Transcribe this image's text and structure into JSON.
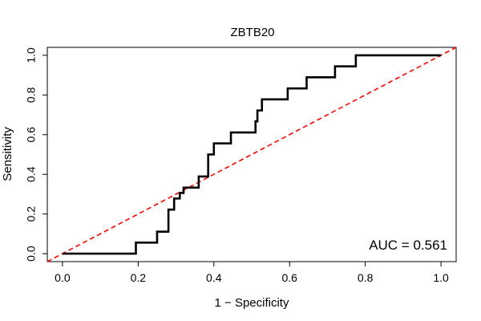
{
  "chart_data": {
    "type": "line",
    "title": "ZBTB20",
    "xlabel": "1 − Specificity",
    "ylabel": "Sensitivity",
    "xlim": [
      -0.04,
      1.04
    ],
    "ylim": [
      -0.04,
      1.04
    ],
    "xticks": [
      "0.0",
      "0.2",
      "0.4",
      "0.6",
      "0.8",
      "1.0"
    ],
    "yticks": [
      "0.0",
      "0.2",
      "0.4",
      "0.6",
      "0.8",
      "1.0"
    ],
    "grid": false,
    "legend": "none",
    "annotation": "AUC = 0.561",
    "series": [
      {
        "style": "solid",
        "color": "#000000",
        "x": [
          0.0,
          0.194,
          0.194,
          0.25,
          0.25,
          0.28,
          0.28,
          0.295,
          0.295,
          0.31,
          0.31,
          0.32,
          0.32,
          0.36,
          0.36,
          0.385,
          0.385,
          0.4,
          0.4,
          0.445,
          0.445,
          0.51,
          0.51,
          0.515,
          0.515,
          0.527,
          0.527,
          0.595,
          0.595,
          0.645,
          0.645,
          0.72,
          0.72,
          0.775,
          0.775,
          1.0
        ],
        "y": [
          0.0,
          0.0,
          0.056,
          0.056,
          0.111,
          0.111,
          0.222,
          0.222,
          0.278,
          0.278,
          0.306,
          0.306,
          0.333,
          0.333,
          0.389,
          0.389,
          0.5,
          0.5,
          0.556,
          0.556,
          0.611,
          0.611,
          0.667,
          0.667,
          0.722,
          0.722,
          0.778,
          0.778,
          0.833,
          0.833,
          0.889,
          0.889,
          0.944,
          0.944,
          1.0,
          1.0
        ]
      },
      {
        "style": "dashed",
        "color": "#ff0000",
        "x": [
          -0.04,
          1.04
        ],
        "y": [
          -0.04,
          1.04
        ]
      }
    ]
  }
}
